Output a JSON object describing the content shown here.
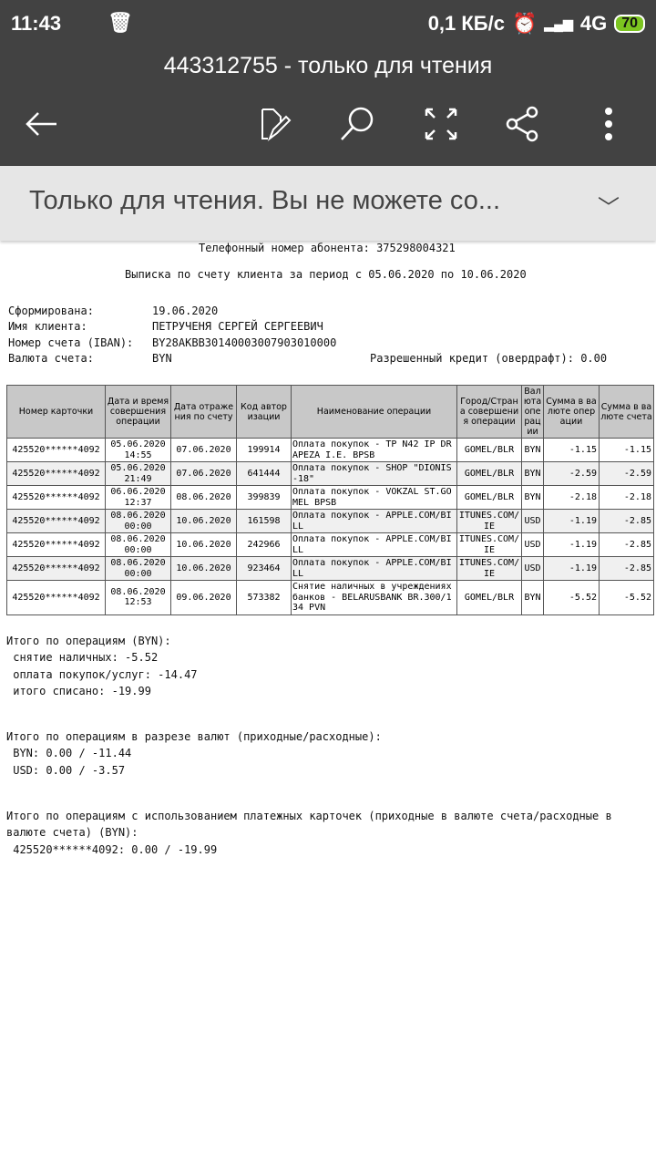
{
  "status": {
    "time": "11:43",
    "speed": "0,1 КБ/с",
    "network": "4G",
    "battery": "70"
  },
  "appbar": {
    "title": "443312755 - только для чтения"
  },
  "banner": {
    "text": "Только для чтения. Вы не можете со..."
  },
  "doc": {
    "phone": "Телефонный номер абонента: 375298004321",
    "period": "Выписка по счету клиента за период с 05.06.2020 по 10.06.2020",
    "formed_label": "Сформирована:",
    "formed": "19.06.2020",
    "client_label": "Имя клиента:",
    "client": "ПЕТРУЧЕНЯ СЕРГЕЙ СЕРГЕЕВИЧ",
    "iban_label": "Номер счета (IBAN):",
    "iban": "BY28AKBB30140003007903010000",
    "currency_label": "Валюта счета:",
    "currency": "BYN",
    "overdraft": "Разрешенный кредит (овердрафт): 0.00"
  },
  "table": {
    "headers": [
      "Номер карточки",
      "Дата и время совершения операции",
      "Дата отражения по счету",
      "Код авторизации",
      "Наименование операции",
      "Город/Страна совершения операции",
      "Валюта операции",
      "Сумма в валюте операции",
      "Сумма в валюте счета"
    ],
    "rows": [
      [
        "425520******4092",
        "05.06.2020 14:55",
        "07.06.2020",
        "199914",
        "Оплата покупок - TP N42 IP DRAPEZA I.E. BPSB",
        "GOMEL/BLR",
        "BYN",
        "-1.15",
        "-1.15"
      ],
      [
        "425520******4092",
        "05.06.2020 21:49",
        "07.06.2020",
        "641444",
        "Оплата покупок - SHOP \"DIONIS-18\"",
        "GOMEL/BLR",
        "BYN",
        "-2.59",
        "-2.59"
      ],
      [
        "425520******4092",
        "06.06.2020 12:37",
        "08.06.2020",
        "399839",
        "Оплата покупок - VOKZAL ST.GOMEL BPSB",
        "GOMEL/BLR",
        "BYN",
        "-2.18",
        "-2.18"
      ],
      [
        "425520******4092",
        "08.06.2020 00:00",
        "10.06.2020",
        "161598",
        "Оплата покупок - APPLE.COM/BILL",
        "ITUNES.COM/IE",
        "USD",
        "-1.19",
        "-2.85"
      ],
      [
        "425520******4092",
        "08.06.2020 00:00",
        "10.06.2020",
        "242966",
        "Оплата покупок - APPLE.COM/BILL",
        "ITUNES.COM/IE",
        "USD",
        "-1.19",
        "-2.85"
      ],
      [
        "425520******4092",
        "08.06.2020 00:00",
        "10.06.2020",
        "923464",
        "Оплата покупок - APPLE.COM/BILL",
        "ITUNES.COM/IE",
        "USD",
        "-1.19",
        "-2.85"
      ],
      [
        "425520******4092",
        "08.06.2020 12:53",
        "09.06.2020",
        "573382",
        "Снятие наличных в учреждениях банков - BELARUSBANK BR.300/134 PVN",
        "GOMEL/BLR",
        "BYN",
        "-5.52",
        "-5.52"
      ]
    ]
  },
  "summary": {
    "s1_title": "Итого по операциям (BYN):",
    "s1_l1": " снятие наличных: -5.52",
    "s1_l2": " оплата покупок/услуг: -14.47",
    "s1_l3": " итого списано: -19.99",
    "s2_title": "Итого по операциям в разрезе валют (приходные/расходные):",
    "s2_l1": " BYN: 0.00 / -11.44",
    "s2_l2": " USD: 0.00 / -3.57",
    "s3_title": "Итого по операциям с использованием платежных карточек (приходные в валюте счета/расходные в\nвалюте счета) (BYN):",
    "s3_l1": " 425520******4092: 0.00 / -19.99"
  }
}
